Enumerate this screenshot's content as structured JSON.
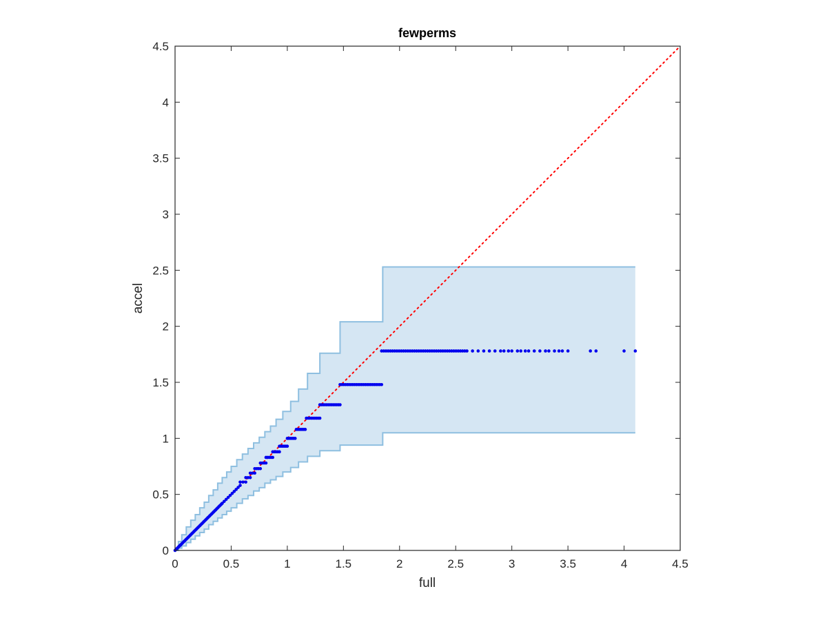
{
  "chart_data": {
    "type": "scatter",
    "title": "fewperms",
    "xlabel": "full",
    "ylabel": "accel",
    "xlim": [
      0,
      4.5
    ],
    "ylim": [
      0,
      4.5
    ],
    "xticks": [
      "0",
      "0.5",
      "1",
      "1.5",
      "2",
      "2.5",
      "3",
      "3.5",
      "4",
      "4.5"
    ],
    "yticks": [
      "0",
      "0.5",
      "1",
      "1.5",
      "2",
      "2.5",
      "3",
      "3.5",
      "4",
      "4.5"
    ],
    "grid": false,
    "legend": "none",
    "colors": {
      "points": "#0000ee",
      "reference": "#ff0000",
      "band_fill": "#d5e6f3",
      "band_edge": "#8ebfe0",
      "axes": "#262626"
    },
    "reference_line": {
      "name": "",
      "x": [
        0,
        4.5
      ],
      "y": [
        0,
        4.5
      ],
      "style": "dotted"
    },
    "band_upper": {
      "x": [
        0,
        0.03,
        0.06,
        0.1,
        0.14,
        0.18,
        0.22,
        0.26,
        0.3,
        0.34,
        0.38,
        0.42,
        0.46,
        0.5,
        0.55,
        0.6,
        0.65,
        0.7,
        0.75,
        0.8,
        0.85,
        0.9,
        0.96,
        1.03,
        1.1,
        1.18,
        1.29,
        1.47,
        1.85,
        4.1
      ],
      "y": [
        0,
        0.08,
        0.14,
        0.21,
        0.27,
        0.32,
        0.38,
        0.43,
        0.49,
        0.54,
        0.6,
        0.65,
        0.7,
        0.75,
        0.81,
        0.86,
        0.91,
        0.96,
        1.01,
        1.06,
        1.11,
        1.17,
        1.24,
        1.33,
        1.44,
        1.58,
        1.76,
        2.04,
        2.53,
        2.53
      ]
    },
    "band_lower": {
      "x": [
        0,
        0.03,
        0.06,
        0.1,
        0.14,
        0.18,
        0.22,
        0.26,
        0.3,
        0.34,
        0.38,
        0.42,
        0.46,
        0.5,
        0.55,
        0.6,
        0.65,
        0.7,
        0.75,
        0.8,
        0.85,
        0.9,
        0.96,
        1.03,
        1.1,
        1.18,
        1.29,
        1.47,
        1.85,
        4.1
      ],
      "y": [
        0,
        0.02,
        0.04,
        0.07,
        0.1,
        0.13,
        0.16,
        0.19,
        0.23,
        0.26,
        0.29,
        0.32,
        0.35,
        0.38,
        0.42,
        0.46,
        0.49,
        0.53,
        0.56,
        0.6,
        0.63,
        0.66,
        0.7,
        0.74,
        0.79,
        0.84,
        0.89,
        0.94,
        1.05,
        1.05
      ]
    },
    "point_groups": [
      {
        "x_start": 0.0,
        "x_end": 0.05,
        "y": null,
        "diagonal": true,
        "count": 8
      },
      {
        "x_start": 0.05,
        "x_end": 0.42,
        "y": null,
        "diagonal": true,
        "count": 40
      },
      {
        "x_start": 0.42,
        "x_end": 0.58,
        "y": null,
        "diagonal": true,
        "count": 10
      },
      {
        "x_start": 0.58,
        "x_end": 0.63,
        "y": 0.61,
        "diagonal": false,
        "count": 3
      },
      {
        "x_start": 0.63,
        "x_end": 0.67,
        "y": 0.65,
        "diagonal": false,
        "count": 3
      },
      {
        "x_start": 0.67,
        "x_end": 0.71,
        "y": 0.69,
        "diagonal": false,
        "count": 3
      },
      {
        "x_start": 0.71,
        "x_end": 0.76,
        "y": 0.73,
        "diagonal": false,
        "count": 4
      },
      {
        "x_start": 0.76,
        "x_end": 0.81,
        "y": 0.78,
        "diagonal": false,
        "count": 4
      },
      {
        "x_start": 0.81,
        "x_end": 0.87,
        "y": 0.83,
        "diagonal": false,
        "count": 5
      },
      {
        "x_start": 0.87,
        "x_end": 0.93,
        "y": 0.88,
        "diagonal": false,
        "count": 5
      },
      {
        "x_start": 0.93,
        "x_end": 1.0,
        "y": 0.93,
        "diagonal": false,
        "count": 6
      },
      {
        "x_start": 1.0,
        "x_end": 1.07,
        "y": 1.0,
        "diagonal": false,
        "count": 6
      },
      {
        "x_start": 1.08,
        "x_end": 1.16,
        "y": 1.08,
        "diagonal": false,
        "count": 7
      },
      {
        "x_start": 1.17,
        "x_end": 1.29,
        "y": 1.18,
        "diagonal": false,
        "count": 9
      },
      {
        "x_start": 1.29,
        "x_end": 1.47,
        "y": 1.3,
        "diagonal": false,
        "count": 13
      },
      {
        "x_start": 1.47,
        "x_end": 1.84,
        "y": 1.48,
        "diagonal": false,
        "count": 24
      },
      {
        "x_start": 1.84,
        "x_end": 2.6,
        "y": 1.78,
        "diagonal": false,
        "count": 40
      }
    ],
    "sparse_points": {
      "y": 1.78,
      "x": [
        2.65,
        2.7,
        2.75,
        2.8,
        2.85,
        2.9,
        2.93,
        2.97,
        3.0,
        3.05,
        3.08,
        3.12,
        3.15,
        3.2,
        3.25,
        3.3,
        3.33,
        3.38,
        3.42,
        3.45,
        3.5,
        3.7,
        3.75,
        4.0,
        4.1
      ]
    }
  }
}
